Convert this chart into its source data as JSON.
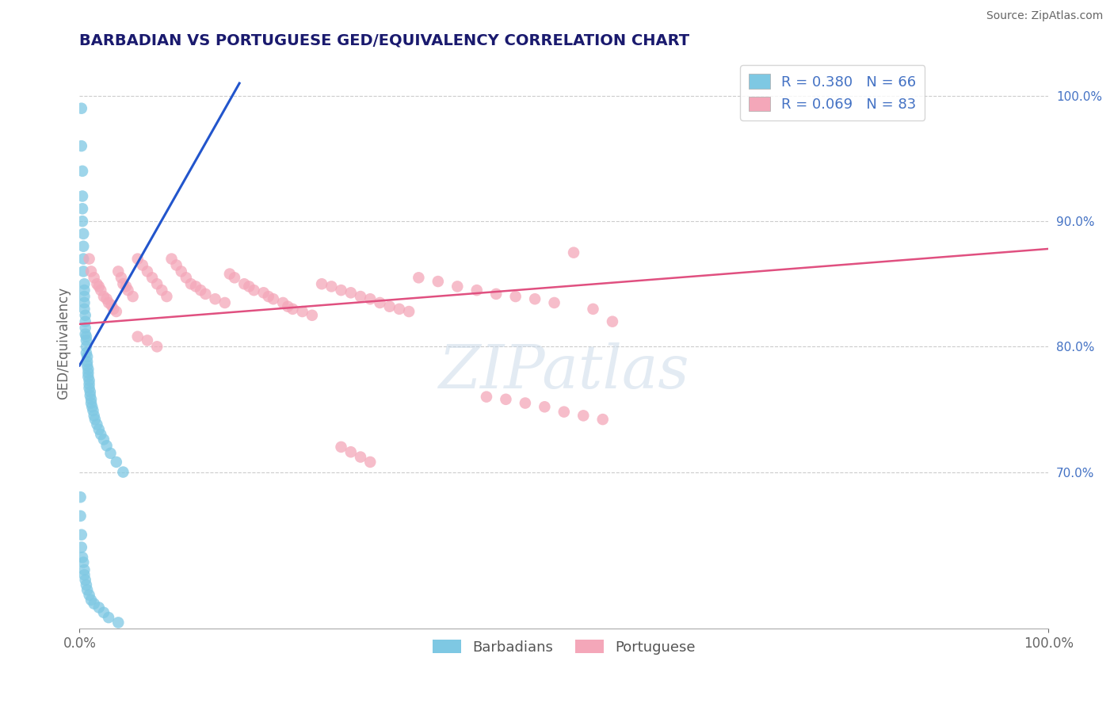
{
  "title": "BARBADIAN VS PORTUGUESE GED/EQUIVALENCY CORRELATION CHART",
  "source": "Source: ZipAtlas.com",
  "ylabel": "GED/Equivalency",
  "legend_labels": [
    "Barbadians",
    "Portuguese"
  ],
  "legend_R": [
    0.38,
    0.069
  ],
  "legend_N": [
    66,
    83
  ],
  "barbadian_color": "#7ec8e3",
  "portuguese_color": "#f4a7b9",
  "trend_blue": "#2255cc",
  "trend_pink": "#e05080",
  "right_ytick_vals": [
    0.7,
    0.8,
    0.9,
    1.0
  ],
  "right_ytick_labels": [
    "70.0%",
    "80.0%",
    "90.0%",
    "100.0%"
  ],
  "x_min": 0.0,
  "x_max": 1.0,
  "y_min": 0.575,
  "y_max": 1.03,
  "blue_trend_x": [
    0.0,
    0.165
  ],
  "blue_trend_y": [
    0.785,
    1.01
  ],
  "pink_trend_x": [
    0.0,
    1.0
  ],
  "pink_trend_y": [
    0.818,
    0.878
  ],
  "barb_x": [
    0.002,
    0.002,
    0.003,
    0.003,
    0.003,
    0.003,
    0.004,
    0.004,
    0.004,
    0.004,
    0.005,
    0.005,
    0.005,
    0.005,
    0.005,
    0.006,
    0.006,
    0.006,
    0.006,
    0.007,
    0.007,
    0.007,
    0.007,
    0.008,
    0.008,
    0.008,
    0.009,
    0.009,
    0.009,
    0.01,
    0.01,
    0.01,
    0.011,
    0.011,
    0.012,
    0.012,
    0.013,
    0.014,
    0.015,
    0.016,
    0.018,
    0.02,
    0.022,
    0.025,
    0.028,
    0.032,
    0.038,
    0.045,
    0.001,
    0.001,
    0.002,
    0.002,
    0.003,
    0.004,
    0.005,
    0.005,
    0.006,
    0.007,
    0.008,
    0.01,
    0.012,
    0.015,
    0.02,
    0.025,
    0.03,
    0.04
  ],
  "barb_y": [
    0.99,
    0.96,
    0.94,
    0.92,
    0.91,
    0.9,
    0.89,
    0.88,
    0.87,
    0.86,
    0.85,
    0.845,
    0.84,
    0.835,
    0.83,
    0.825,
    0.82,
    0.815,
    0.81,
    0.808,
    0.805,
    0.8,
    0.795,
    0.792,
    0.788,
    0.785,
    0.782,
    0.779,
    0.776,
    0.773,
    0.77,
    0.767,
    0.764,
    0.761,
    0.758,
    0.755,
    0.752,
    0.749,
    0.745,
    0.742,
    0.738,
    0.734,
    0.73,
    0.726,
    0.721,
    0.715,
    0.708,
    0.7,
    0.68,
    0.665,
    0.65,
    0.64,
    0.632,
    0.628,
    0.622,
    0.618,
    0.614,
    0.61,
    0.606,
    0.602,
    0.598,
    0.595,
    0.592,
    0.588,
    0.584,
    0.58
  ],
  "port_x": [
    0.01,
    0.012,
    0.015,
    0.018,
    0.02,
    0.022,
    0.025,
    0.028,
    0.03,
    0.033,
    0.035,
    0.038,
    0.04,
    0.043,
    0.045,
    0.048,
    0.05,
    0.055,
    0.06,
    0.065,
    0.07,
    0.075,
    0.08,
    0.085,
    0.09,
    0.095,
    0.1,
    0.105,
    0.11,
    0.115,
    0.12,
    0.125,
    0.13,
    0.14,
    0.15,
    0.155,
    0.16,
    0.17,
    0.175,
    0.18,
    0.19,
    0.195,
    0.2,
    0.21,
    0.215,
    0.22,
    0.23,
    0.24,
    0.25,
    0.26,
    0.27,
    0.28,
    0.29,
    0.3,
    0.31,
    0.32,
    0.33,
    0.34,
    0.35,
    0.37,
    0.39,
    0.41,
    0.43,
    0.45,
    0.47,
    0.49,
    0.51,
    0.53,
    0.55,
    0.42,
    0.44,
    0.46,
    0.48,
    0.5,
    0.52,
    0.54,
    0.06,
    0.07,
    0.08,
    0.27,
    0.28,
    0.29,
    0.3
  ],
  "port_y": [
    0.87,
    0.86,
    0.855,
    0.85,
    0.848,
    0.845,
    0.84,
    0.838,
    0.835,
    0.833,
    0.83,
    0.828,
    0.86,
    0.855,
    0.85,
    0.848,
    0.845,
    0.84,
    0.87,
    0.865,
    0.86,
    0.855,
    0.85,
    0.845,
    0.84,
    0.87,
    0.865,
    0.86,
    0.855,
    0.85,
    0.848,
    0.845,
    0.842,
    0.838,
    0.835,
    0.858,
    0.855,
    0.85,
    0.848,
    0.845,
    0.843,
    0.84,
    0.838,
    0.835,
    0.832,
    0.83,
    0.828,
    0.825,
    0.85,
    0.848,
    0.845,
    0.843,
    0.84,
    0.838,
    0.835,
    0.832,
    0.83,
    0.828,
    0.855,
    0.852,
    0.848,
    0.845,
    0.842,
    0.84,
    0.838,
    0.835,
    0.875,
    0.83,
    0.82,
    0.76,
    0.758,
    0.755,
    0.752,
    0.748,
    0.745,
    0.742,
    0.808,
    0.805,
    0.8,
    0.72,
    0.716,
    0.712,
    0.708
  ]
}
